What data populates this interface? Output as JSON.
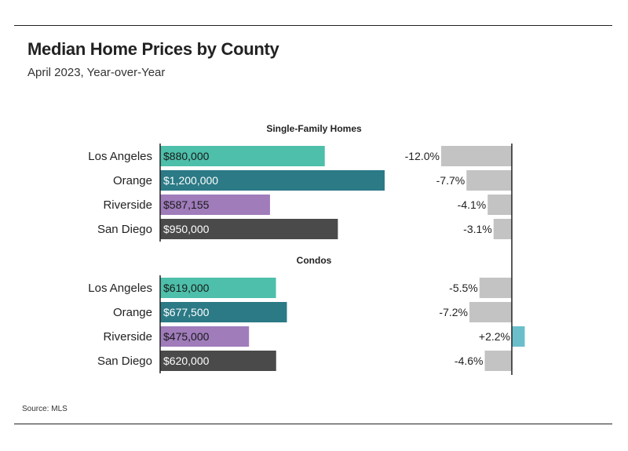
{
  "header": {
    "title": "Median Home Prices by County",
    "subtitle": "April 2023, Year-over-Year"
  },
  "footer": {
    "source": "Source: MLS"
  },
  "colors": {
    "Los Angeles": "#4dbfaa",
    "Orange": "#2b7a86",
    "Riverside": "#a07cbb",
    "San Diego": "#4a4a4a",
    "change_negative": "#c3c3c3",
    "change_positive": "#6bbfcb",
    "axis": "#222222"
  },
  "chart_data": {
    "type": "bar",
    "categories": [
      "Los Angeles",
      "Orange",
      "Riverside",
      "San Diego"
    ],
    "panels": [
      {
        "name": "Single-Family Homes",
        "values": [
          880000,
          1200000,
          587155,
          950000
        ],
        "value_labels": [
          "$880,000",
          "$1,200,000",
          "$587,155",
          "$950,000"
        ],
        "yoy_change": [
          -12.0,
          -7.7,
          -4.1,
          -3.1
        ],
        "yoy_labels": [
          "-12.0%",
          "-7.7%",
          "-4.1%",
          "-3.1%"
        ]
      },
      {
        "name": "Condos",
        "values": [
          619000,
          677500,
          475000,
          620000
        ],
        "value_labels": [
          "$619,000",
          "$677,500",
          "$475,000",
          "$620,000"
        ],
        "yoy_change": [
          -5.5,
          -7.2,
          2.2,
          -4.6
        ],
        "yoy_labels": [
          "-5.5%",
          "-7.2%",
          "+2.2%",
          "-4.6%"
        ]
      }
    ]
  }
}
